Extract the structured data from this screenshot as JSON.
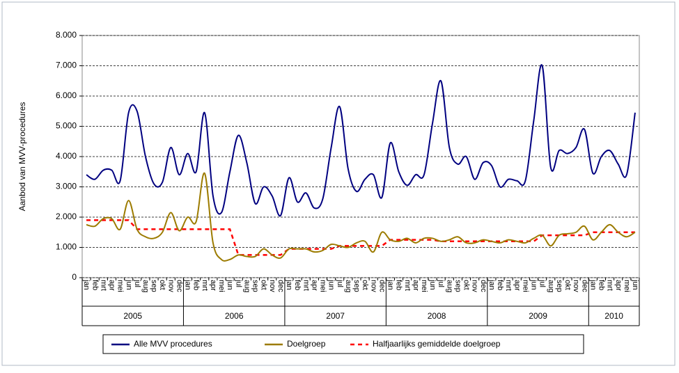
{
  "chart_data": {
    "type": "line",
    "y_label": "Aanbod van MVV-procedures",
    "groups": [
      {
        "label": "2005",
        "categories": [
          "jan",
          "feb",
          "mrt",
          "apr",
          "mei",
          "jun",
          "jul",
          "aug",
          "sep",
          "okt",
          "nov",
          "dec"
        ]
      },
      {
        "label": "2006",
        "categories": [
          "jan",
          "feb",
          "mrt",
          "apr",
          "mei",
          "jun",
          "jul",
          "aug",
          "sep",
          "okt",
          "nov",
          "dec"
        ]
      },
      {
        "label": "2007",
        "categories": [
          "jan",
          "feb",
          "mrt",
          "apr",
          "mei",
          "jun",
          "jul",
          "aug",
          "sep",
          "okt",
          "nov",
          "dec"
        ]
      },
      {
        "label": "2008",
        "categories": [
          "jan",
          "feb",
          "mrt",
          "apr",
          "mei",
          "jun",
          "jul",
          "aug",
          "sep",
          "okt",
          "nov",
          "dec"
        ]
      },
      {
        "label": "2009",
        "categories": [
          "jan",
          "feb",
          "mrt",
          "apr",
          "mei",
          "jun",
          "jul",
          "aug",
          "sep",
          "okt",
          "nov",
          "dec"
        ]
      },
      {
        "label": "2010",
        "categories": [
          "jan",
          "feb",
          "mrt",
          "apr",
          "mei",
          "jun"
        ]
      }
    ],
    "series": [
      {
        "name": "Alle MVV procedures",
        "color": "#000080",
        "style": "solid",
        "values": [
          3400,
          3250,
          3550,
          3550,
          3200,
          5450,
          5500,
          4000,
          3100,
          3150,
          4300,
          3400,
          4100,
          3500,
          5450,
          2700,
          2150,
          3500,
          4700,
          3800,
          2450,
          3000,
          2700,
          2050,
          3300,
          2500,
          2800,
          2300,
          2600,
          4300,
          5650,
          3600,
          2850,
          3250,
          3400,
          2650,
          4450,
          3500,
          3050,
          3400,
          3400,
          5100,
          6500,
          4300,
          3750,
          4000,
          3250,
          3800,
          3700,
          3000,
          3250,
          3200,
          3200,
          5200,
          7000,
          3650,
          4200,
          4100,
          4300,
          4900,
          3450,
          4000,
          4200,
          3750,
          3400,
          5450
        ]
      },
      {
        "name": "Doelgroep",
        "color": "#9c7b00",
        "style": "solid",
        "values": [
          1750,
          1700,
          1950,
          1950,
          1600,
          2550,
          1600,
          1350,
          1300,
          1500,
          2150,
          1550,
          2000,
          1850,
          3450,
          1150,
          600,
          600,
          750,
          700,
          700,
          950,
          750,
          650,
          950,
          950,
          950,
          850,
          900,
          1100,
          1050,
          1000,
          1150,
          1200,
          850,
          1500,
          1250,
          1200,
          1300,
          1150,
          1300,
          1300,
          1200,
          1250,
          1350,
          1150,
          1150,
          1250,
          1200,
          1150,
          1250,
          1200,
          1150,
          1300,
          1400,
          1050,
          1400,
          1450,
          1500,
          1700,
          1250,
          1500,
          1750,
          1500,
          1350,
          1500
        ]
      },
      {
        "name": "Halfjaarlijks gemiddelde doelgroep",
        "color": "#ff0000",
        "style": "dashed",
        "values": [
          1900,
          1900,
          1900,
          1900,
          1900,
          1900,
          1600,
          1600,
          1600,
          1600,
          1600,
          1600,
          1600,
          1600,
          1600,
          1600,
          1600,
          1600,
          750,
          750,
          750,
          750,
          750,
          750,
          950,
          950,
          950,
          950,
          950,
          950,
          1050,
          1050,
          1050,
          1050,
          1050,
          1050,
          1250,
          1250,
          1250,
          1250,
          1250,
          1250,
          1200,
          1200,
          1200,
          1200,
          1200,
          1200,
          1200,
          1200,
          1200,
          1200,
          1200,
          1200,
          1400,
          1400,
          1400,
          1400,
          1400,
          1400,
          1500,
          1500,
          1500,
          1500,
          1500,
          1500
        ]
      }
    ],
    "ylim": [
      0,
      8000
    ],
    "yticks": [
      0,
      {
        "value": 1000,
        "label": "1.000"
      },
      {
        "value": 2000,
        "label": "2.000"
      },
      {
        "value": 3000,
        "label": "3.000"
      },
      {
        "value": 4000,
        "label": "4.000"
      },
      {
        "value": 5000,
        "label": "5.000"
      },
      {
        "value": 6000,
        "label": "6.000"
      },
      {
        "value": 7000,
        "label": "7.000"
      },
      {
        "value": 8000,
        "label": "8.000"
      }
    ],
    "grid": true,
    "legend": "bottom"
  }
}
